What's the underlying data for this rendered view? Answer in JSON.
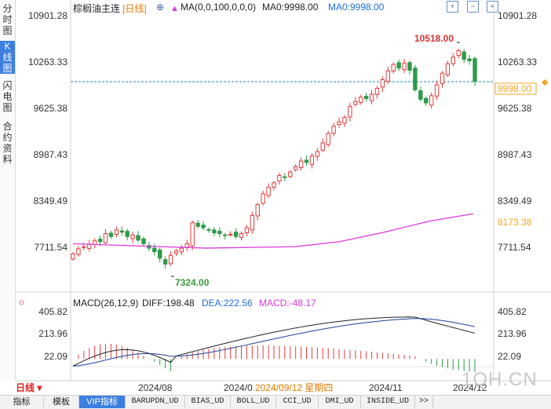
{
  "left_tabs": [
    {
      "label": "分时图",
      "active": false
    },
    {
      "label": "K线图",
      "active": true
    },
    {
      "label": "闪电图",
      "active": false
    },
    {
      "label": "合约资料",
      "active": false
    }
  ],
  "header": {
    "symbol": "棕榈油主连",
    "period": "[日线]",
    "ma_label": "MA(0,0,100,0,0,0)",
    "ma0_black": "MA0:9998.00",
    "ma0_blue": "MA0:9998.00"
  },
  "icons": [
    "zoom-in-icon",
    "zoom-out-icon",
    "close-icon"
  ],
  "price_axis": {
    "ticks": [
      "10901.28",
      "10263.33",
      "9625.38",
      "8987.43",
      "8349.49",
      "7711.54"
    ],
    "last_price_tag": "9998.00",
    "ma_tag": "8173.38",
    "high_label": "10518.00",
    "low_label": "7324.00",
    "last_price_color": "#f5a623",
    "ma_color": "#d93ad9"
  },
  "macd": {
    "title": "MACD(26,12,9)",
    "diff": "DIFF:198.48",
    "dea": "DEA:222.56",
    "macd": "MACD:-48.17",
    "ticks": [
      "405.82",
      "213.96",
      "22.09"
    ]
  },
  "time_axis": {
    "labels": [
      "2024/08",
      "2024/0",
      "2024/11",
      "2024/12"
    ],
    "cursor_date": "2024/09/12 星期四"
  },
  "period_button": "日线",
  "bottom_tabs": [
    {
      "label": "指标",
      "active": false
    },
    {
      "label": "模板",
      "active": false
    },
    {
      "label": "VIP指标",
      "active": true
    },
    {
      "label": "BARUPDN_UD",
      "active": false
    },
    {
      "label": "BIAS_UD",
      "active": false
    },
    {
      "label": "BOLL_UD",
      "active": false
    },
    {
      "label": "CCI_UD",
      "active": false
    },
    {
      "label": "DMI_UD",
      "active": false
    },
    {
      "label": "INSIDE_UD",
      "active": false
    },
    {
      "label": ">>",
      "active": false
    }
  ],
  "watermark": "1QH.CN",
  "chart_data": {
    "type": "candlestick",
    "period": "daily",
    "y_range": [
      7324.0,
      10901.28
    ],
    "high": 10518.0,
    "low": 7324.0,
    "last_close": 9998.0,
    "candles_approx_close": [
      7620,
      7690,
      7720,
      7750,
      7800,
      7790,
      7900,
      7860,
      7950,
      7920,
      7860,
      7880,
      7810,
      7760,
      7700,
      7650,
      7560,
      7480,
      7600,
      7660,
      7700,
      7760,
      8050,
      8000,
      7980,
      7950,
      7910,
      7900,
      7880,
      7890,
      7860,
      7900,
      7980,
      8150,
      8300,
      8450,
      8540,
      8600,
      8700,
      8680,
      8750,
      8820,
      8900,
      8880,
      8970,
      9030,
      9150,
      9280,
      9380,
      9440,
      9500,
      9650,
      9720,
      9780,
      9760,
      9820,
      9900,
      10020,
      10140,
      10230,
      10180,
      10250,
      10150,
      9880,
      9750,
      9700,
      9800,
      9950,
      10110,
      10240,
      10330,
      10420,
      10300,
      10280,
      9998
    ],
    "ma100_approx": [
      7760,
      7740,
      7720,
      7700,
      7710,
      7720,
      7790,
      7920,
      8070,
      8173.38
    ],
    "macd_series": {
      "diff": 198.48,
      "dea": 222.56,
      "macd": -48.17,
      "axis_ticks": [
        405.82,
        213.96,
        22.09
      ]
    }
  }
}
